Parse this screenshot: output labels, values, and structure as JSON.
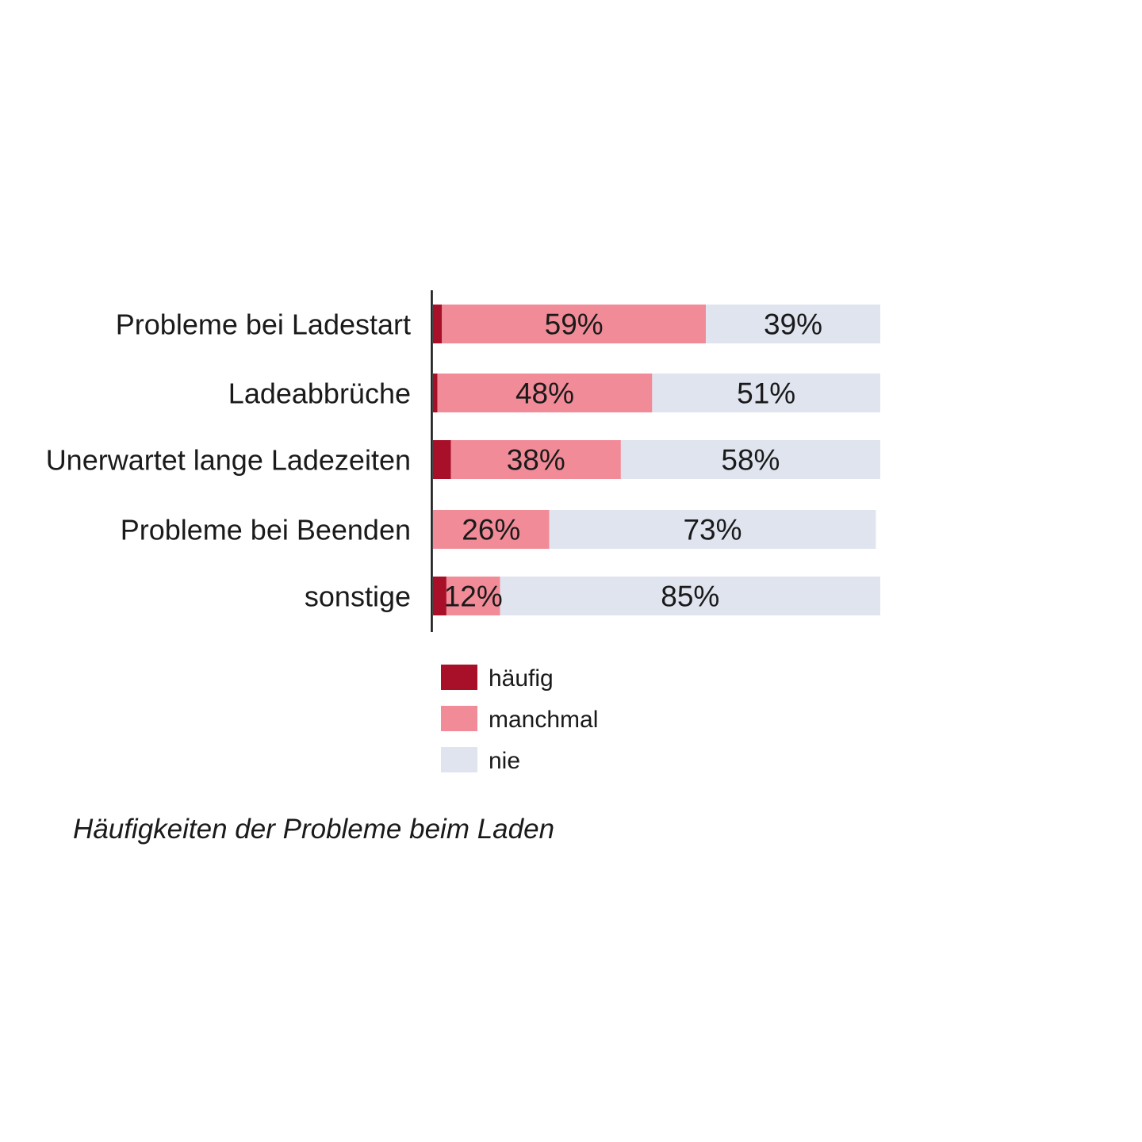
{
  "chart_data": {
    "type": "bar",
    "orientation": "horizontal",
    "stacked": true,
    "categories": [
      "Probleme bei Ladestart",
      "Ladeabbrüche",
      "Unerwartet lange Ladezeiten",
      "Probleme bei Beenden",
      "sonstige"
    ],
    "series": [
      {
        "name": "häufig",
        "color": "#a8102a",
        "values": [
          2,
          1,
          4,
          0,
          3
        ]
      },
      {
        "name": "manchmal",
        "color": "#f28b98",
        "values": [
          59,
          48,
          38,
          26,
          12
        ]
      },
      {
        "name": "nie",
        "color": "#dfe4ef",
        "values": [
          39,
          51,
          58,
          73,
          85
        ]
      }
    ],
    "data_labels": {
      "manchmal": [
        "59%",
        "48%",
        "38%",
        "26%",
        "12%"
      ],
      "nie": [
        "39%",
        "51%",
        "58%",
        "73%",
        "85%"
      ]
    },
    "xlim": [
      0,
      100
    ],
    "grid": false,
    "legend_position": "bottom",
    "caption": "Häufigkeiten der Probleme beim Laden"
  }
}
